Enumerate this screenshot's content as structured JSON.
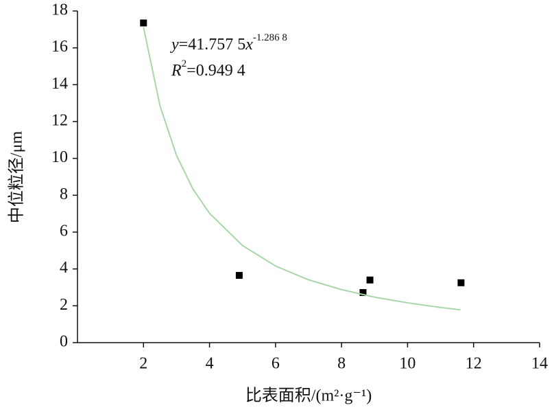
{
  "chart_data": {
    "type": "scatter",
    "x_label": "比表面积/(m²·g⁻¹)",
    "y_label": "中位粒径/μm",
    "annotation": {
      "eq_y": "y",
      "eq_body": "=41.757 5",
      "eq_x": "x",
      "eq_exp": "-1.286 8",
      "r_sym": "R",
      "r_sup": "2",
      "r_body": "=0.949 4"
    },
    "xlim": [
      0,
      14
    ],
    "xticks": [
      2,
      4,
      6,
      8,
      10,
      12,
      14
    ],
    "ylim": [
      0,
      18
    ],
    "yticks": [
      0,
      2,
      4,
      6,
      8,
      10,
      12,
      14,
      16,
      18
    ],
    "series": [
      {
        "style": "markers",
        "color": "#000000",
        "x": [
          2.0,
          4.9,
          8.65,
          8.86,
          11.62
        ],
        "values": [
          17.35,
          3.65,
          2.72,
          3.4,
          3.25
        ]
      },
      {
        "style": "line",
        "color": "#a9d6a9",
        "x": [
          2,
          2.5,
          3,
          3.5,
          4,
          5,
          6,
          7,
          8,
          9,
          10,
          11,
          11.6
        ],
        "values": [
          17.12,
          12.85,
          10.16,
          8.33,
          7.02,
          5.27,
          4.16,
          3.41,
          2.88,
          2.47,
          2.16,
          1.91,
          1.78
        ]
      }
    ]
  }
}
